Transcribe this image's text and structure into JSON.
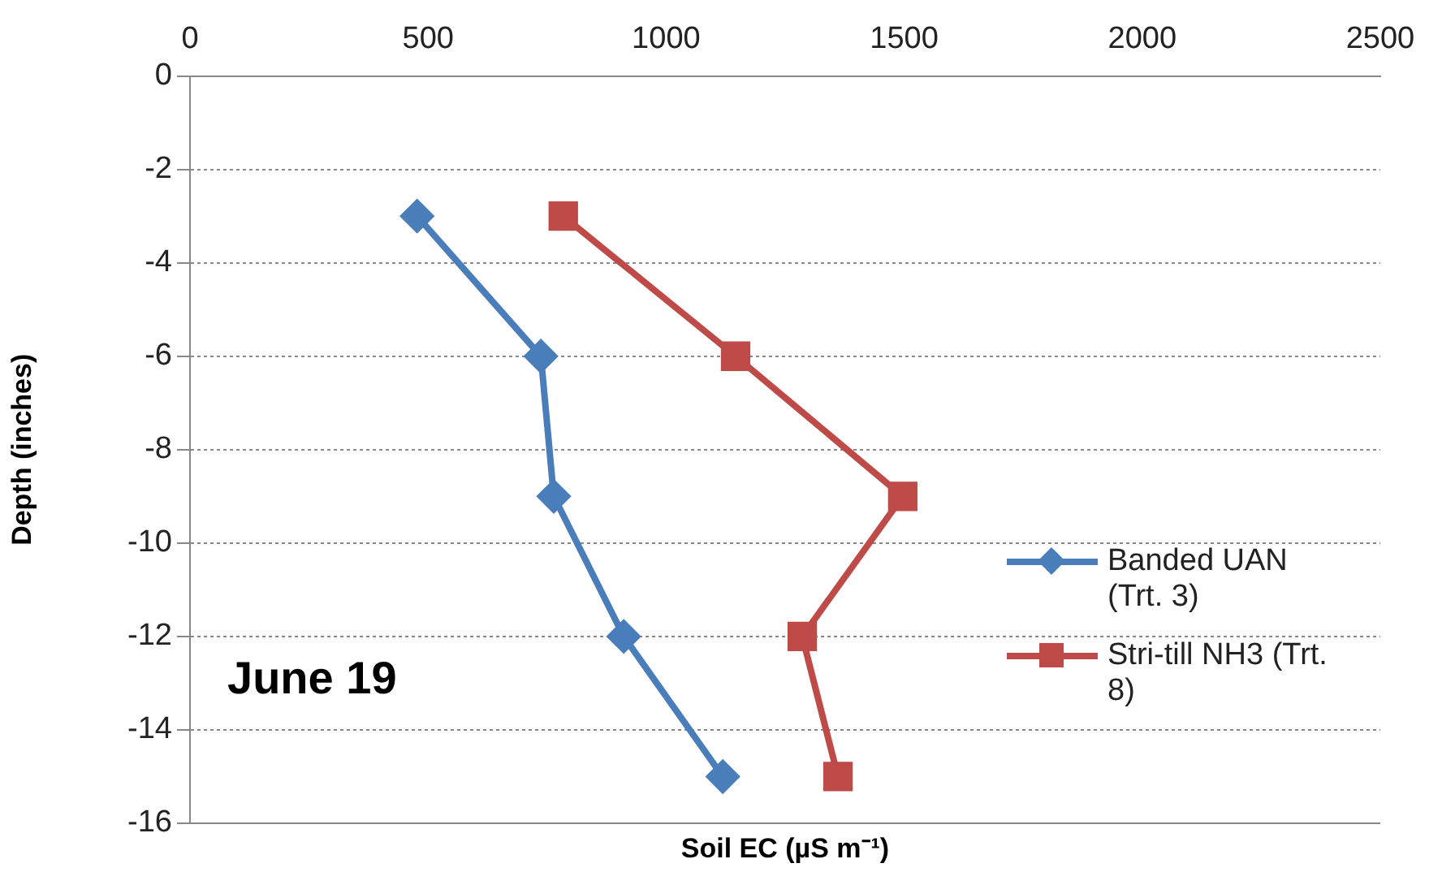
{
  "chart_data": {
    "type": "line",
    "xlabel": "Soil EC (µS m⁻¹)",
    "ylabel": "Depth (inches)",
    "xlim": [
      0,
      2500
    ],
    "xticks": [
      0,
      500,
      1000,
      1500,
      2000,
      2500
    ],
    "ylim": [
      -16,
      0
    ],
    "yticks": [
      -16,
      -14,
      -12,
      -10,
      -8,
      -6,
      -4,
      -2,
      0
    ],
    "grid": "y",
    "legend": "right",
    "annotations": [
      "June 19"
    ],
    "series": [
      {
        "name": "Banded UAN (Trt. 3)",
        "color": "#4a7ebb",
        "marker": "diamond",
        "x": [
          477,
          737,
          764,
          911,
          1119
        ],
        "values": [
          -3,
          -6,
          -9,
          -12,
          -15
        ]
      },
      {
        "name": "Stri-till NH3 (Trt. 8)",
        "color": "#be4b48",
        "marker": "square",
        "x": [
          784,
          1146,
          1497,
          1286,
          1361
        ],
        "values": [
          -3,
          -6,
          -9,
          -12,
          -15
        ]
      }
    ]
  }
}
